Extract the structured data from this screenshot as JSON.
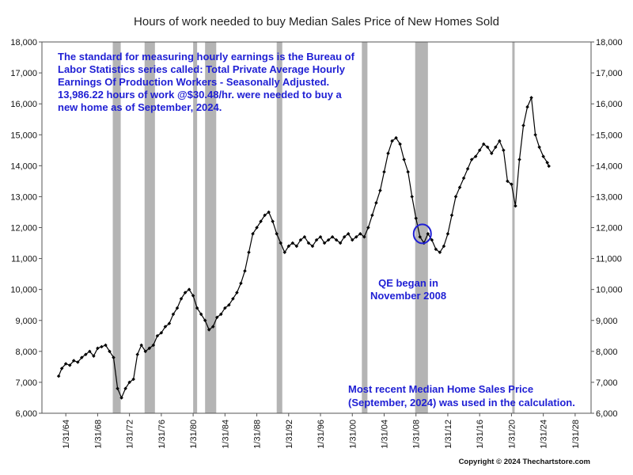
{
  "chart_data": {
    "type": "line",
    "title": "Hours of work needed to buy Median Sales Price of New Homes Sold",
    "ylim": [
      6000,
      18000
    ],
    "y_ticks": [
      6000,
      7000,
      8000,
      9000,
      10000,
      11000,
      12000,
      13000,
      14000,
      15000,
      16000,
      17000,
      18000
    ],
    "y_tick_labels": [
      "6,000",
      "7,000",
      "8,000",
      "9,000",
      "10,000",
      "11,000",
      "12,000",
      "13,000",
      "14,000",
      "15,000",
      "16,000",
      "17,000",
      "18,000"
    ],
    "xlim": [
      1961,
      2030
    ],
    "x_ticks": [
      1964,
      1968,
      1972,
      1976,
      1980,
      1984,
      1988,
      1992,
      1996,
      2000,
      2004,
      2008,
      2012,
      2016,
      2020,
      2024,
      2028
    ],
    "x_tick_labels": [
      "1/31/64",
      "1/31/68",
      "1/31/72",
      "1/31/76",
      "1/31/80",
      "1/31/84",
      "1/31/88",
      "1/31/92",
      "1/31/96",
      "1/31/00",
      "1/31/04",
      "1/31/08",
      "1/31/12",
      "1/31/16",
      "1/31/20",
      "1/31/24",
      "1/31/28"
    ],
    "y_axis_both_sides": true,
    "grid": false,
    "line_color": "#000000",
    "recession_shade_color": "#b4b4b4",
    "recessions": [
      [
        1969.9,
        1970.9
      ],
      [
        1973.9,
        1975.2
      ],
      [
        1980.0,
        1980.5
      ],
      [
        1981.5,
        1982.9
      ],
      [
        1990.5,
        1991.2
      ],
      [
        2001.2,
        2001.9
      ],
      [
        2007.9,
        2009.5
      ],
      [
        2020.1,
        2020.4
      ]
    ],
    "series": [
      {
        "x": [
          1963.1,
          1963.5,
          1964.0,
          1964.5,
          1965.0,
          1965.5,
          1966.0,
          1966.5,
          1967.0,
          1967.5,
          1968.0,
          1968.5,
          1969.0,
          1969.5,
          1970.0,
          1970.5,
          1971.0,
          1971.5,
          1972.0,
          1972.5,
          1973.0,
          1973.5,
          1974.0,
          1974.5,
          1975.0,
          1975.5,
          1976.0,
          1976.5,
          1977.0,
          1977.5,
          1978.0,
          1978.5,
          1979.0,
          1979.5,
          1980.0,
          1980.5,
          1981.0,
          1981.5,
          1982.0,
          1982.5,
          1983.0,
          1983.5,
          1984.0,
          1984.5,
          1985.0,
          1985.5,
          1986.0,
          1986.5,
          1987.0,
          1987.5,
          1988.0,
          1988.5,
          1989.0,
          1989.5,
          1990.0,
          1990.5,
          1991.0,
          1991.5,
          1992.0,
          1992.5,
          1993.0,
          1993.5,
          1994.0,
          1994.5,
          1995.0,
          1995.5,
          1996.0,
          1996.5,
          1997.0,
          1997.5,
          1998.0,
          1998.5,
          1999.0,
          1999.5,
          2000.0,
          2000.5,
          2001.0,
          2001.5,
          2002.0,
          2002.5,
          2003.0,
          2003.5,
          2004.0,
          2004.5,
          2005.0,
          2005.5,
          2006.0,
          2006.5,
          2007.0,
          2007.5,
          2008.0,
          2008.5,
          2009.0,
          2009.5,
          2010.0,
          2010.5,
          2011.0,
          2011.5,
          2012.0,
          2012.5,
          2013.0,
          2013.5,
          2014.0,
          2014.5,
          2015.0,
          2015.5,
          2016.0,
          2016.5,
          2017.0,
          2017.5,
          2018.0,
          2018.5,
          2019.0,
          2019.5,
          2020.0,
          2020.5,
          2021.0,
          2021.5,
          2022.0,
          2022.5,
          2023.0,
          2023.5,
          2024.0,
          2024.5,
          2024.7
        ],
        "y": [
          7200,
          7450,
          7600,
          7550,
          7700,
          7650,
          7800,
          7900,
          8000,
          7850,
          8100,
          8150,
          8200,
          8000,
          7800,
          6800,
          6500,
          6800,
          7000,
          7100,
          7900,
          8200,
          8000,
          8100,
          8200,
          8500,
          8600,
          8800,
          8900,
          9200,
          9400,
          9700,
          9900,
          10000,
          9800,
          9400,
          9200,
          9000,
          8700,
          8800,
          9100,
          9200,
          9400,
          9500,
          9700,
          9900,
          10200,
          10600,
          11200,
          11800,
          12000,
          12200,
          12400,
          12500,
          12200,
          11800,
          11500,
          11200,
          11400,
          11500,
          11400,
          11600,
          11700,
          11500,
          11400,
          11600,
          11700,
          11500,
          11600,
          11700,
          11600,
          11500,
          11700,
          11800,
          11600,
          11700,
          11800,
          11700,
          12000,
          12400,
          12800,
          13200,
          13800,
          14400,
          14800,
          14900,
          14700,
          14200,
          13800,
          13000,
          12300,
          11700,
          11500,
          11800,
          11600,
          11300,
          11200,
          11400,
          11800,
          12400,
          13000,
          13300,
          13600,
          13900,
          14200,
          14300,
          14500,
          14700,
          14600,
          14400,
          14600,
          14800,
          14500,
          13500,
          13400,
          12700,
          14200,
          15300,
          15900,
          16200,
          15000,
          14600,
          14300,
          14100,
          13986
        ]
      }
    ],
    "annotations": [
      "The standard for measuring hourly earnings is the Bureau of",
      "Labor Statistics series called:  Total Private Average Hourly",
      "Earnings Of Production Workers - Seasonally Adjusted.",
      "13,986.22 hours of work @$30.48/hr. were needed to buy a",
      "new home as of September, 2024.",
      "QE began in",
      "November 2008",
      "Most recent Median Home Sales Price",
      "(September, 2024) was used in the calculation."
    ],
    "highlight_point": {
      "x": 2008.8,
      "y": 11800,
      "label": "QE began in November 2008"
    },
    "copyright": "Copyright © 2024 Thechartstore.com"
  }
}
